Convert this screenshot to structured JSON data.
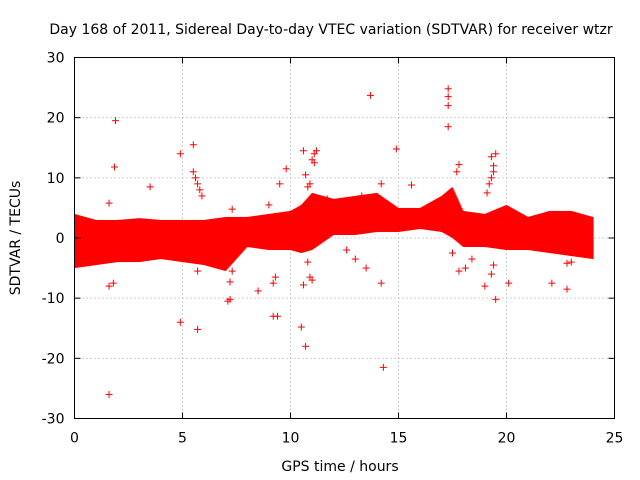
{
  "chart_data": {
    "type": "scatter",
    "title": "Day 168 of 2011, Sidereal Day-to-day VTEC variation (SDTVAR) for receiver wtzr",
    "xlabel": "GPS time / hours",
    "ylabel": "SDTVAR / TECUs",
    "xlim": [
      0,
      25
    ],
    "ylim": [
      -30,
      30
    ],
    "xticks": [
      "0",
      "5",
      "10",
      "15",
      "20",
      "25"
    ],
    "yticks": [
      "-30",
      "-20",
      "-10",
      "0",
      "10",
      "20",
      "30"
    ],
    "grid": true,
    "marker": "+",
    "color": "#ff0000",
    "series": [
      {
        "name": "SDTVAR",
        "band": [
          {
            "t": 0.0,
            "lo": -4.5,
            "hi": 3.5
          },
          {
            "t": 1.0,
            "lo": -4.0,
            "hi": 2.5
          },
          {
            "t": 2.0,
            "lo": -3.5,
            "hi": 2.5
          },
          {
            "t": 3.0,
            "lo": -3.5,
            "hi": 2.8
          },
          {
            "t": 4.0,
            "lo": -3.0,
            "hi": 2.5
          },
          {
            "t": 5.0,
            "lo": -3.5,
            "hi": 2.5
          },
          {
            "t": 6.0,
            "lo": -4.0,
            "hi": 2.5
          },
          {
            "t": 7.0,
            "lo": -5.0,
            "hi": 3.0
          },
          {
            "t": 8.0,
            "lo": -1.0,
            "hi": 3.0
          },
          {
            "t": 9.0,
            "lo": -1.5,
            "hi": 3.5
          },
          {
            "t": 10.0,
            "lo": -1.5,
            "hi": 4.0
          },
          {
            "t": 10.5,
            "lo": -2.0,
            "hi": 5.0
          },
          {
            "t": 11.0,
            "lo": -1.5,
            "hi": 7.0
          },
          {
            "t": 12.0,
            "lo": 1.0,
            "hi": 6.0
          },
          {
            "t": 13.0,
            "lo": 1.0,
            "hi": 6.5
          },
          {
            "t": 14.0,
            "lo": 1.5,
            "hi": 7.0
          },
          {
            "t": 15.0,
            "lo": 1.5,
            "hi": 4.5
          },
          {
            "t": 16.0,
            "lo": 2.0,
            "hi": 4.5
          },
          {
            "t": 17.0,
            "lo": 1.5,
            "hi": 6.5
          },
          {
            "t": 17.5,
            "lo": 0.5,
            "hi": 8.0
          },
          {
            "t": 18.0,
            "lo": -1.0,
            "hi": 4.0
          },
          {
            "t": 19.0,
            "lo": -1.0,
            "hi": 3.5
          },
          {
            "t": 20.0,
            "lo": -1.5,
            "hi": 5.0
          },
          {
            "t": 21.0,
            "lo": -1.5,
            "hi": 3.0
          },
          {
            "t": 22.0,
            "lo": -2.0,
            "hi": 4.0
          },
          {
            "t": 23.0,
            "lo": -2.5,
            "hi": 4.0
          },
          {
            "t": 24.0,
            "lo": -3.0,
            "hi": 3.0
          }
        ],
        "outliers": [
          {
            "x": 1.6,
            "y": -26.0
          },
          {
            "x": 1.6,
            "y": -8.0
          },
          {
            "x": 1.8,
            "y": -7.5
          },
          {
            "x": 1.6,
            "y": 5.8
          },
          {
            "x": 1.9,
            "y": 19.5
          },
          {
            "x": 1.85,
            "y": 11.8
          },
          {
            "x": 3.5,
            "y": 8.5
          },
          {
            "x": 4.9,
            "y": 14.0
          },
          {
            "x": 4.9,
            "y": -14.0
          },
          {
            "x": 5.5,
            "y": 15.5
          },
          {
            "x": 5.7,
            "y": -15.2
          },
          {
            "x": 5.7,
            "y": -5.5
          },
          {
            "x": 5.5,
            "y": 11.0
          },
          {
            "x": 5.6,
            "y": 10.0
          },
          {
            "x": 5.7,
            "y": 9.0
          },
          {
            "x": 5.8,
            "y": 8.0
          },
          {
            "x": 5.9,
            "y": 7.0
          },
          {
            "x": 7.1,
            "y": -10.5
          },
          {
            "x": 7.2,
            "y": -10.2
          },
          {
            "x": 7.2,
            "y": -7.3
          },
          {
            "x": 7.3,
            "y": -5.5
          },
          {
            "x": 7.1,
            "y": -2.0
          },
          {
            "x": 7.3,
            "y": 4.8
          },
          {
            "x": 8.5,
            "y": -8.8
          },
          {
            "x": 9.0,
            "y": 5.5
          },
          {
            "x": 9.2,
            "y": -13.0
          },
          {
            "x": 9.4,
            "y": -13.0
          },
          {
            "x": 9.3,
            "y": -6.5
          },
          {
            "x": 9.2,
            "y": -7.5
          },
          {
            "x": 9.5,
            "y": 9.0
          },
          {
            "x": 9.8,
            "y": 11.5
          },
          {
            "x": 10.5,
            "y": -14.8
          },
          {
            "x": 10.6,
            "y": -7.8
          },
          {
            "x": 10.7,
            "y": -18.0
          },
          {
            "x": 10.8,
            "y": -4.0
          },
          {
            "x": 10.9,
            "y": -6.5
          },
          {
            "x": 11.0,
            "y": -7.0
          },
          {
            "x": 10.6,
            "y": 14.5
          },
          {
            "x": 10.7,
            "y": 10.5
          },
          {
            "x": 10.9,
            "y": 9.0
          },
          {
            "x": 10.8,
            "y": 8.5
          },
          {
            "x": 11.0,
            "y": 13.0
          },
          {
            "x": 11.1,
            "y": 14.0
          },
          {
            "x": 11.2,
            "y": 14.5
          },
          {
            "x": 11.1,
            "y": 12.5
          },
          {
            "x": 11.7,
            "y": 6.5
          },
          {
            "x": 12.6,
            "y": -2.0
          },
          {
            "x": 13.0,
            "y": -3.5
          },
          {
            "x": 13.3,
            "y": 7.0
          },
          {
            "x": 13.5,
            "y": -5.0
          },
          {
            "x": 13.7,
            "y": 23.7
          },
          {
            "x": 14.2,
            "y": -7.5
          },
          {
            "x": 14.3,
            "y": -21.5
          },
          {
            "x": 14.2,
            "y": 9.0
          },
          {
            "x": 14.9,
            "y": 14.8
          },
          {
            "x": 15.6,
            "y": 8.8
          },
          {
            "x": 17.3,
            "y": 24.8
          },
          {
            "x": 17.3,
            "y": 23.5
          },
          {
            "x": 17.3,
            "y": 22.0
          },
          {
            "x": 17.3,
            "y": 18.5
          },
          {
            "x": 17.8,
            "y": 12.2
          },
          {
            "x": 17.7,
            "y": 11.0
          },
          {
            "x": 17.5,
            "y": -2.5
          },
          {
            "x": 17.8,
            "y": -5.5
          },
          {
            "x": 18.1,
            "y": -5.0
          },
          {
            "x": 18.4,
            "y": -3.5
          },
          {
            "x": 19.0,
            "y": -8.0
          },
          {
            "x": 19.3,
            "y": -6.0
          },
          {
            "x": 19.4,
            "y": -4.5
          },
          {
            "x": 19.5,
            "y": -10.2
          },
          {
            "x": 19.3,
            "y": 13.5
          },
          {
            "x": 19.4,
            "y": 12.0
          },
          {
            "x": 19.5,
            "y": 14.0
          },
          {
            "x": 19.4,
            "y": 11.0
          },
          {
            "x": 19.3,
            "y": 10.0
          },
          {
            "x": 19.2,
            "y": 9.0
          },
          {
            "x": 19.1,
            "y": 7.5
          },
          {
            "x": 20.1,
            "y": -7.5
          },
          {
            "x": 22.1,
            "y": -7.5
          },
          {
            "x": 22.8,
            "y": -8.5
          },
          {
            "x": 22.8,
            "y": -4.2
          },
          {
            "x": 23.0,
            "y": -4.0
          },
          {
            "x": 23.5,
            "y": -2.5
          },
          {
            "x": 21.1,
            "y": 0.3
          }
        ]
      }
    ]
  }
}
